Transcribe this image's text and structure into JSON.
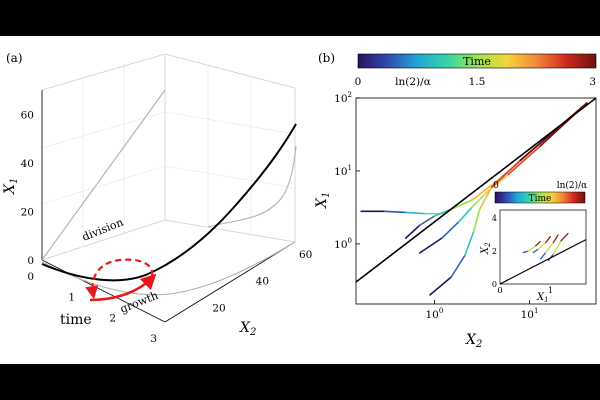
{
  "panel_a": {
    "label": "(a)",
    "axes": {
      "x1": "X",
      "x1_sub": "1",
      "x2": "X",
      "x2_sub": "2",
      "time": "time"
    },
    "z_ticks": [
      "0",
      "20",
      "40",
      "60"
    ],
    "time_ticks": [
      "0",
      "1",
      "2",
      "3"
    ],
    "x2_ticks": [
      "20",
      "40",
      "60"
    ],
    "annotations": {
      "division": "division",
      "growth": "growth"
    },
    "colors": {
      "curve": "#000000",
      "projection": "#b0b0b0",
      "cycle": "#e8191c",
      "grid": "#dddddd"
    }
  },
  "panel_b": {
    "label": "(b)",
    "colorbar": {
      "title": "Time",
      "ticks": [
        "0",
        "ln(2)/α",
        "1.5",
        "3"
      ],
      "colors": [
        "#2b0f5e",
        "#2f4ab0",
        "#21a6d6",
        "#37d4a8",
        "#9ee451",
        "#f2d53c",
        "#f5873a",
        "#cc2a1c",
        "#6e0f10"
      ]
    },
    "axes": {
      "xlabel": "X",
      "xlabel_sub": "2",
      "ylabel": "X",
      "ylabel_sub": "1"
    },
    "x_ticks": [
      {
        "base": "10",
        "exp": "0"
      },
      {
        "base": "10",
        "exp": "1"
      }
    ],
    "y_ticks": [
      {
        "base": "10",
        "exp": "0"
      },
      {
        "base": "10",
        "exp": "1"
      },
      {
        "base": "10",
        "exp": "2"
      }
    ],
    "inset": {
      "colorbar_title": "Time",
      "colorbar_left": "0",
      "colorbar_right": "ln(2)/α",
      "y_ticks": [
        "0",
        "2",
        "4"
      ],
      "x_ticks": [
        "0",
        "1"
      ],
      "xlabel": "X",
      "xlabel_sub": "1",
      "ylabel": "X",
      "ylabel_sub": "2"
    }
  },
  "chart_data": [
    {
      "type": "line",
      "panel": "(a)",
      "title": "",
      "axes": [
        "time",
        "X2",
        "X1"
      ],
      "xlim_time": [
        0,
        3
      ],
      "xlim_X2": [
        0,
        60
      ],
      "ylim_X1": [
        0,
        70
      ],
      "series": [
        {
          "points": [
            [
              0,
              0,
              0
            ],
            [
              0.5,
              1,
              1
            ],
            [
              1.0,
              3,
              3
            ],
            [
              1.5,
              7,
              7
            ],
            [
              2.0,
              14,
              14
            ],
            [
              2.5,
              29,
              29
            ],
            [
              3.0,
              62,
              64
            ]
          ]
        }
      ],
      "annotations": [
        "division",
        "growth"
      ]
    },
    {
      "type": "line",
      "panel": "(b)",
      "title": "",
      "xlabel": "X2",
      "ylabel": "X1",
      "xscale": "log",
      "yscale": "log",
      "xlim": [
        0.15,
        50
      ],
      "ylim": [
        0.15,
        100
      ],
      "colorbar": {
        "label": "Time",
        "range": [
          0,
          3
        ]
      },
      "series": [
        {
          "x": [
            0.17,
            0.3,
            0.5,
            0.8,
            1.2,
            2.5,
            5,
            12,
            40
          ],
          "y": [
            2.8,
            2.8,
            2.7,
            2.6,
            2.6,
            4.0,
            8,
            22,
            85
          ]
        },
        {
          "x": [
            0.5,
            0.7,
            1.0,
            1.5,
            2.5,
            5,
            12,
            40
          ],
          "y": [
            1.2,
            1.8,
            2.4,
            3.0,
            4.0,
            8,
            22,
            85
          ]
        },
        {
          "x": [
            0.7,
            1.2,
            1.8,
            2.5,
            3.5,
            6,
            13,
            40
          ],
          "y": [
            0.75,
            1.2,
            2.0,
            3.2,
            5.0,
            9,
            22,
            85
          ]
        },
        {
          "x": [
            0.9,
            1.5,
            2.1,
            2.6,
            3.0,
            4,
            8,
            40
          ],
          "y": [
            0.2,
            0.35,
            0.7,
            1.5,
            3.0,
            6,
            14,
            85
          ]
        },
        {
          "x": [
            0.15,
            50
          ],
          "y": [
            0.3,
            100
          ],
          "name": ""
        }
      ]
    },
    {
      "type": "line",
      "panel": "(b) inset",
      "title": "",
      "xlabel": "X1",
      "ylabel": "X2",
      "xlim": [
        0,
        1.7
      ],
      "ylim": [
        0,
        4.5
      ],
      "series": [
        {
          "x": [
            0.45,
            0.55,
            0.7,
            0.8
          ],
          "y": [
            1.9,
            2.0,
            2.3,
            2.6
          ]
        },
        {
          "x": [
            0.65,
            0.75,
            0.9,
            1.0
          ],
          "y": [
            1.9,
            2.1,
            2.5,
            2.9
          ]
        },
        {
          "x": [
            0.8,
            0.9,
            1.05,
            1.15
          ],
          "y": [
            1.5,
            1.9,
            2.5,
            3.0
          ]
        },
        {
          "x": [
            0.95,
            1.05,
            1.2,
            1.35
          ],
          "y": [
            1.4,
            1.8,
            2.6,
            3.1
          ]
        },
        {
          "x": [
            0,
            1.7
          ],
          "y": [
            0,
            2.7
          ]
        }
      ]
    }
  ]
}
